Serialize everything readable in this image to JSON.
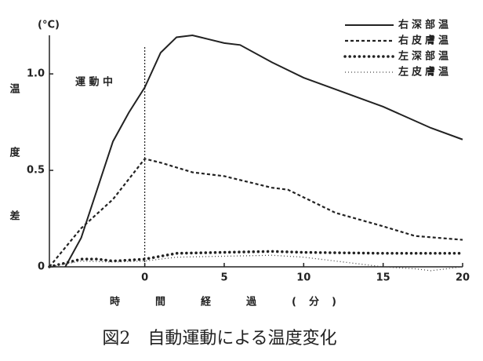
{
  "chart_data": {
    "type": "line",
    "unit": "(°C)",
    "ylabel": "温度差",
    "xlabel": "時　間　経　過　(分)",
    "caption": "図2　自動運動による温度変化",
    "annotation": "運 動 中",
    "marker_x": 0,
    "xlim": [
      -6,
      20
    ],
    "xticks": [
      0,
      5,
      10,
      15,
      20
    ],
    "ylim": [
      0,
      1.2
    ],
    "yticks": [
      0,
      0.5,
      {
        "value": 1,
        "label": "1.0"
      }
    ],
    "series": [
      {
        "name": "右深部温",
        "color": "#222222",
        "style": "solid",
        "x": [
          -5,
          -4,
          -3,
          -2,
          -1,
          0,
          1,
          2,
          3,
          4,
          5,
          6,
          8,
          10,
          12,
          15,
          18,
          20
        ],
        "values": [
          0,
          0.15,
          0.4,
          0.65,
          0.8,
          0.93,
          1.11,
          1.19,
          1.2,
          1.18,
          1.16,
          1.15,
          1.06,
          0.98,
          0.92,
          0.83,
          0.72,
          0.66
        ]
      },
      {
        "name": "右皮膚温",
        "color": "#222222",
        "style": "dashed",
        "x": [
          -6,
          -4,
          -2,
          0,
          1,
          3,
          5,
          8,
          9,
          10,
          12,
          15,
          17,
          20
        ],
        "values": [
          0,
          0.2,
          0.35,
          0.56,
          0.54,
          0.49,
          0.47,
          0.41,
          0.4,
          0.36,
          0.28,
          0.21,
          0.16,
          0.14
        ]
      },
      {
        "name": "左深部温",
        "color": "#222222",
        "style": "dotted",
        "x": [
          -6,
          -4,
          -3,
          -2,
          0,
          2,
          5,
          8,
          10,
          15,
          20
        ],
        "values": [
          0,
          0.04,
          0.04,
          0.03,
          0.04,
          0.07,
          0.075,
          0.08,
          0.075,
          0.07,
          0.07
        ]
      },
      {
        "name": "左皮膚温",
        "color": "#444444",
        "style": "dotted-light",
        "x": [
          -6,
          -4,
          -2,
          0,
          2,
          5,
          8,
          10,
          13,
          15,
          17,
          18,
          20
        ],
        "values": [
          0,
          0.03,
          0.025,
          0.03,
          0.05,
          0.055,
          0.06,
          0.05,
          0.02,
          0,
          -0.01,
          -0.02,
          0
        ]
      }
    ]
  }
}
